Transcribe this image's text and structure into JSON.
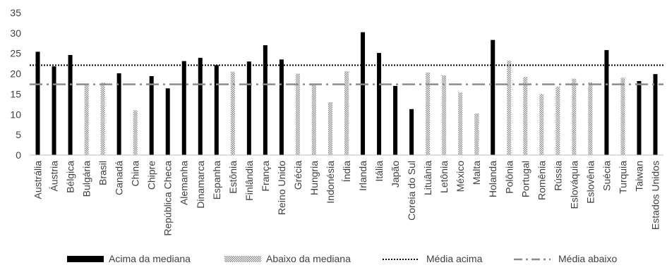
{
  "chart_data": {
    "type": "bar",
    "ylim": [
      0,
      35
    ],
    "yticks": [
      0,
      5,
      10,
      15,
      20,
      25,
      30,
      35
    ],
    "grid": false,
    "legend_position": "bottom",
    "categories": [
      "Austrália",
      "Áustria",
      "Bélgica",
      "Bulgária",
      "Brasil",
      "Canadá",
      "China",
      "Chipre",
      "República Checa",
      "Alemanha",
      "Dinamarca",
      "Espanha",
      "Estônia",
      "Finlândia",
      "França",
      "Reino Unido",
      "Grécia",
      "Hungria",
      "Indonésia",
      "Índia",
      "Irlanda",
      "Itália",
      "Japão",
      "Coreia do Sul",
      "Lituânia",
      "Letônia",
      "México",
      "Malta",
      "Holanda",
      "Polônia",
      "Portugal",
      "Romênia",
      "Rússia",
      "Eslováquia",
      "Eslovênia",
      "Suécia",
      "Turquia",
      "Taiwan",
      "Estados Unidos"
    ],
    "values": [
      25.4,
      21.8,
      24.6,
      17.2,
      17.8,
      20.1,
      11.0,
      19.4,
      16.4,
      23.1,
      23.9,
      22.1,
      20.5,
      23.0,
      27.0,
      23.5,
      20.0,
      17.5,
      13.0,
      20.6,
      30.2,
      25.1,
      17.0,
      11.3,
      20.3,
      19.6,
      15.4,
      10.2,
      28.3,
      23.2,
      19.2,
      15.0,
      16.8,
      18.8,
      17.9,
      25.8,
      19.0,
      18.2,
      19.9
    ],
    "groups": [
      "above",
      "above",
      "above",
      "below",
      "below",
      "above",
      "below",
      "above",
      "above",
      "above",
      "above",
      "above",
      "below",
      "above",
      "above",
      "above",
      "below",
      "below",
      "below",
      "below",
      "above",
      "above",
      "above",
      "above",
      "below",
      "below",
      "below",
      "below",
      "above",
      "below",
      "below",
      "below",
      "below",
      "below",
      "below",
      "above",
      "below",
      "above",
      "above"
    ],
    "series": [
      {
        "name": "Acima da mediana",
        "key": "above",
        "style": "solid",
        "color": "#000000"
      },
      {
        "name": "Abaixo da mediana",
        "key": "below",
        "style": "hatched",
        "color": "#9a9a9a"
      }
    ],
    "reference_lines": [
      {
        "name": "Média acima",
        "value": 22.1,
        "style": "dotted",
        "color": "#000000"
      },
      {
        "name": "Média abaixo",
        "value": 17.4,
        "style": "dash-dot",
        "color": "#8c8c8c"
      }
    ]
  }
}
